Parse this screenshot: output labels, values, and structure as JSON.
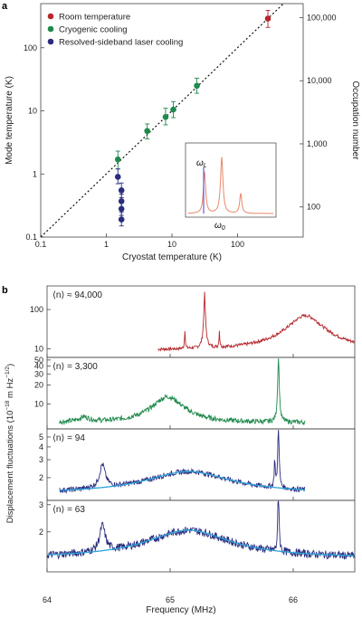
{
  "panel_a": {
    "panel_label": "a",
    "chart_data": {
      "type": "scatter",
      "xscale": "log",
      "yscale": "log",
      "xlim": [
        0.1,
        1000
      ],
      "ylim": [
        0.1,
        500
      ],
      "xlabel": "Cryostat temperature (K)",
      "ylabel": "Mode temperature (K)",
      "y2label": "Occupation number",
      "xticks": [
        "0.1",
        "1",
        "10",
        "100"
      ],
      "yticks": [
        "0.1",
        "1",
        "10",
        "100"
      ],
      "y2ticks": [
        {
          "label": "100,000",
          "value": 300
        },
        {
          "label": "10,000",
          "value": 30
        },
        {
          "label": "1,000",
          "value": 3
        },
        {
          "label": "100",
          "value": 0.3
        }
      ],
      "reference_line": "y = x (dotted)",
      "series": [
        {
          "name": "Room temperature",
          "color": "#b5282d",
          "points": [
            {
              "x": 290,
              "y": 290,
              "lo": 210,
              "hi": 390
            }
          ]
        },
        {
          "name": "Cryogenic cooling",
          "color": "#1f8a4c",
          "points": [
            {
              "x": 1.5,
              "y": 1.7,
              "lo": 1.2,
              "hi": 2.3
            },
            {
              "x": 4.2,
              "y": 4.8,
              "lo": 3.6,
              "hi": 6.2
            },
            {
              "x": 8,
              "y": 8,
              "lo": 6,
              "hi": 11
            },
            {
              "x": 10.5,
              "y": 10.5,
              "lo": 7.8,
              "hi": 14
            },
            {
              "x": 24,
              "y": 25,
              "lo": 19,
              "hi": 33
            }
          ]
        },
        {
          "name": "Resolved-sideband laser cooling",
          "color": "#2b2d7c",
          "points": [
            {
              "x": 1.5,
              "y": 0.9,
              "lo": 0.7,
              "hi": 1.2
            },
            {
              "x": 1.7,
              "y": 0.55,
              "lo": 0.42,
              "hi": 0.72
            },
            {
              "x": 1.7,
              "y": 0.37,
              "lo": 0.29,
              "hi": 0.48
            },
            {
              "x": 1.7,
              "y": 0.28,
              "lo": 0.22,
              "hi": 0.36
            },
            {
              "x": 1.7,
              "y": 0.19,
              "lo": 0.15,
              "hi": 0.25
            }
          ]
        }
      ],
      "inset": {
        "label_laser": "ω",
        "label_laser_sub": "L",
        "label_mode": "ω",
        "label_mode_sub": "0"
      }
    }
  },
  "panel_b": {
    "panel_label": "b",
    "chart_data": {
      "type": "line",
      "xlabel": "Frequency (MHz)",
      "ylabel": "Displacement fluctuations (10",
      "ylabel_sup": "−18",
      "ylabel_mid": " m Hz",
      "ylabel_sup2": "−1/2",
      "ylabel_end": ")",
      "xlim": [
        64,
        66.5
      ],
      "xticks": [
        "64",
        "65",
        "66"
      ],
      "subpanels": [
        {
          "label": "⟨n⟩ ≈ 94,000",
          "color": "#b5282d",
          "yscale": "log",
          "ylim": [
            6,
            400
          ],
          "yticks": [
            "10",
            "100"
          ],
          "center": 66.1,
          "peak": 70,
          "base": 9,
          "x_start": 64.9,
          "x_end": 66.5
        },
        {
          "label": "⟨n⟩ = 3,300",
          "color": "#1f8a4c",
          "yscale": "log",
          "ylim": [
            4,
            55
          ],
          "yticks": [
            "10",
            "20",
            "30",
            "40",
            "50"
          ],
          "center": 64.98,
          "peak": 13,
          "base": 5,
          "x_start": 64.1,
          "x_end": 66.1
        },
        {
          "label": "⟨n⟩ = 94",
          "color": "#2b2d7c",
          "fit_color": "#2fa3dc",
          "yscale": "log",
          "ylim": [
            1.2,
            6
          ],
          "yticks": [
            "2",
            "3",
            "4",
            "5"
          ],
          "center": 65.15,
          "peak": 2.3,
          "base": 1.4,
          "x_start": 64.1,
          "x_end": 66.1
        },
        {
          "label": "⟨n⟩ = 63",
          "color": "#2b2d7c",
          "fit_color": "#2fa3dc",
          "yscale": "log",
          "ylim": [
            1.1,
            3.2
          ],
          "yticks": [
            "2",
            "3"
          ],
          "center": 65.15,
          "peak": 2.05,
          "base": 1.35,
          "x_start": 64.0,
          "x_end": 66.5
        }
      ]
    }
  }
}
